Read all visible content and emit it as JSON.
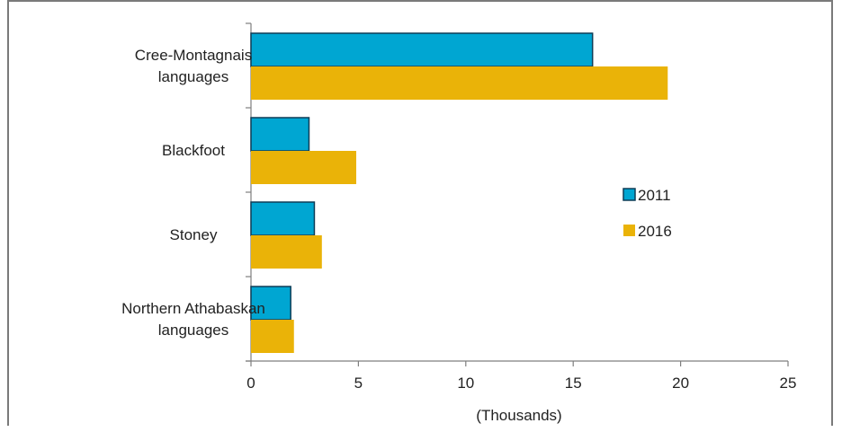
{
  "chart_data": {
    "type": "bar",
    "orientation": "horizontal",
    "categories": [
      [
        "Cree-Montagnais",
        "languages"
      ],
      [
        "Blackfoot"
      ],
      [
        "Stoney"
      ],
      [
        "Northern Athabaskan",
        "languages"
      ]
    ],
    "series": [
      {
        "name": "2011",
        "color": "#00a6d2",
        "stroke": "#0f3d57",
        "values": [
          15.9,
          2.7,
          2.95,
          1.85
        ]
      },
      {
        "name": "2016",
        "color": "#eab308",
        "stroke": "#eab308",
        "values": [
          19.4,
          4.9,
          3.3,
          2.0
        ]
      }
    ],
    "xlim": [
      0,
      25
    ],
    "xticks": [
      0,
      5,
      10,
      15,
      20,
      25
    ],
    "xlabel": "(Thousands)",
    "legend_position": "right",
    "grid": false
  }
}
